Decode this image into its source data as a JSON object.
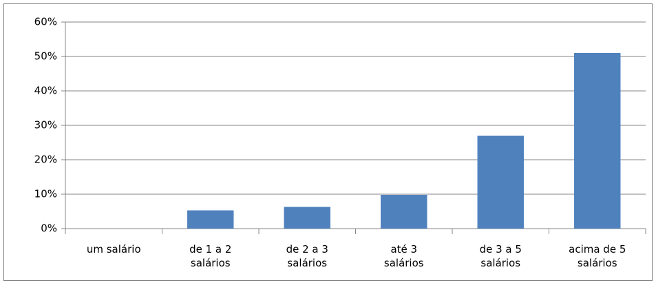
{
  "chart_data": {
    "type": "bar",
    "categories": [
      "um salário",
      "de 1 a 2\nsalários",
      "de 2 a 3\nsalários",
      "até 3\nsalários",
      "de 3 a 5\nsalários",
      "acima de 5\nsalários"
    ],
    "values": [
      0,
      5.3,
      6.3,
      9.8,
      27,
      51
    ],
    "color": "#4f81bd",
    "ylim": [
      0,
      60
    ],
    "yticks": [
      {
        "value": 0,
        "label": "0%"
      },
      {
        "value": 10,
        "label": "10%"
      },
      {
        "value": 20,
        "label": "20%"
      },
      {
        "value": 30,
        "label": "30%"
      },
      {
        "value": 40,
        "label": "40%"
      },
      {
        "value": 50,
        "label": "50%"
      },
      {
        "value": 60,
        "label": "60%"
      }
    ],
    "grid": true
  }
}
